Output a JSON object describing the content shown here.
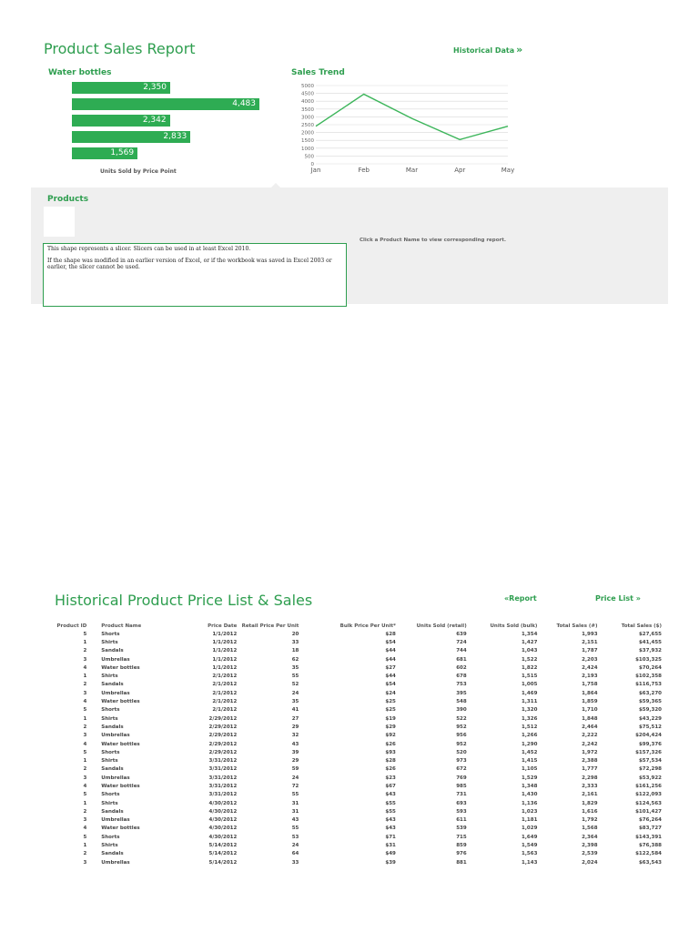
{
  "report": {
    "title": "Product Sales Report",
    "historical_link": "Historical Data",
    "historical_link_icon": "double-chevron-right-icon",
    "bar_chart_title": "Water bottles",
    "trend_title": "Sales Trend",
    "products_title": "Products",
    "click_hint": "Click a Product Name to view corresponding report.",
    "slicer_line1": "This shape represents a slicer. Slicers can be used in at least Excel 2010.",
    "slicer_line2": "If the shape was modified in an earlier version of Excel, or if the workbook was saved in Excel 2003 or earlier, the slicer cannot be used."
  },
  "chart_data": [
    {
      "type": "bar",
      "title": "Water bottles",
      "orientation": "horizontal",
      "values": [
        2350,
        4483,
        2342,
        2833,
        1569
      ],
      "value_labels": [
        "2,350",
        "4,483",
        "2,342",
        "2,833",
        "1,569"
      ],
      "xlabel": "Units Sold by Price Point",
      "color": "#2eac53"
    },
    {
      "type": "line",
      "title": "Sales Trend",
      "categories": [
        "Jan",
        "Feb",
        "Mar",
        "Apr",
        "May"
      ],
      "values": [
        2400,
        4450,
        2900,
        1550,
        2400
      ],
      "ylim": [
        0,
        5000
      ],
      "yticks": [
        "5000",
        "4500",
        "4000",
        "3500",
        "3000",
        "2500",
        "2000",
        "1500",
        "1000",
        "500",
        "0"
      ],
      "grid": true,
      "color": "#3cb55a"
    }
  ],
  "history": {
    "title": "Historical Product Price List & Sales",
    "report_link": "Report",
    "report_link_icon": "double-chevron-left-icon",
    "price_link": "Price List",
    "price_link_icon": "double-chevron-right-icon",
    "columns": [
      "Product ID",
      "Product Name",
      "Price Date",
      "Retail Price Per Unit",
      "Bulk Price Per Unit*",
      "Units Sold (retail)",
      "Units Sold (bulk)",
      "Total Sales (#)",
      "Total Sales ($)"
    ],
    "rows": [
      [
        "5",
        "Shorts",
        "1/1/2012",
        "20",
        "$28",
        "639",
        "1,354",
        "1,993",
        "$27,655"
      ],
      [
        "1",
        "Shirts",
        "1/1/2012",
        "33",
        "$54",
        "724",
        "1,427",
        "2,151",
        "$41,455"
      ],
      [
        "2",
        "Sandals",
        "1/1/2012",
        "18",
        "$44",
        "744",
        "1,043",
        "1,787",
        "$37,932"
      ],
      [
        "3",
        "Umbrellas",
        "1/1/2012",
        "62",
        "$44",
        "681",
        "1,522",
        "2,203",
        "$103,325"
      ],
      [
        "4",
        "Water bottles",
        "1/1/2012",
        "35",
        "$27",
        "602",
        "1,822",
        "2,424",
        "$70,264"
      ],
      [
        "1",
        "Shirts",
        "2/1/2012",
        "55",
        "$44",
        "678",
        "1,515",
        "2,193",
        "$102,358"
      ],
      [
        "2",
        "Sandals",
        "2/1/2012",
        "52",
        "$54",
        "753",
        "1,005",
        "1,758",
        "$116,753"
      ],
      [
        "3",
        "Umbrellas",
        "2/1/2012",
        "24",
        "$24",
        "395",
        "1,469",
        "1,864",
        "$63,270"
      ],
      [
        "4",
        "Water bottles",
        "2/1/2012",
        "35",
        "$25",
        "548",
        "1,311",
        "1,859",
        "$59,365"
      ],
      [
        "5",
        "Shorts",
        "2/1/2012",
        "41",
        "$25",
        "390",
        "1,320",
        "1,710",
        "$59,320"
      ],
      [
        "1",
        "Shirts",
        "2/29/2012",
        "27",
        "$19",
        "522",
        "1,326",
        "1,848",
        "$43,229"
      ],
      [
        "2",
        "Sandals",
        "2/29/2012",
        "29",
        "$29",
        "952",
        "1,512",
        "2,464",
        "$75,512"
      ],
      [
        "3",
        "Umbrellas",
        "2/29/2012",
        "32",
        "$92",
        "956",
        "1,266",
        "2,222",
        "$204,424"
      ],
      [
        "4",
        "Water bottles",
        "2/29/2012",
        "43",
        "$26",
        "952",
        "1,290",
        "2,242",
        "$99,376"
      ],
      [
        "5",
        "Shorts",
        "2/29/2012",
        "39",
        "$93",
        "520",
        "1,452",
        "1,972",
        "$157,326"
      ],
      [
        "1",
        "Shirts",
        "3/31/2012",
        "29",
        "$28",
        "973",
        "1,415",
        "2,388",
        "$57,534"
      ],
      [
        "2",
        "Sandals",
        "3/31/2012",
        "59",
        "$26",
        "672",
        "1,105",
        "1,777",
        "$72,298"
      ],
      [
        "3",
        "Umbrellas",
        "3/31/2012",
        "24",
        "$23",
        "769",
        "1,529",
        "2,298",
        "$53,922"
      ],
      [
        "4",
        "Water bottles",
        "3/31/2012",
        "72",
        "$67",
        "985",
        "1,348",
        "2,333",
        "$161,256"
      ],
      [
        "5",
        "Shorts",
        "3/31/2012",
        "55",
        "$43",
        "731",
        "1,430",
        "2,161",
        "$122,093"
      ],
      [
        "1",
        "Shirts",
        "4/30/2012",
        "31",
        "$55",
        "693",
        "1,136",
        "1,829",
        "$124,563"
      ],
      [
        "2",
        "Sandals",
        "4/30/2012",
        "31",
        "$55",
        "593",
        "1,023",
        "1,616",
        "$101,427"
      ],
      [
        "3",
        "Umbrellas",
        "4/30/2012",
        "43",
        "$43",
        "611",
        "1,181",
        "1,792",
        "$76,264"
      ],
      [
        "4",
        "Water bottles",
        "4/30/2012",
        "55",
        "$43",
        "539",
        "1,029",
        "1,568",
        "$83,727"
      ],
      [
        "5",
        "Shorts",
        "4/30/2012",
        "53",
        "$71",
        "715",
        "1,649",
        "2,364",
        "$143,391"
      ],
      [
        "1",
        "Shirts",
        "5/14/2012",
        "24",
        "$31",
        "859",
        "1,549",
        "2,398",
        "$76,388"
      ],
      [
        "2",
        "Sandals",
        "5/14/2012",
        "64",
        "$49",
        "976",
        "1,563",
        "2,539",
        "$122,584"
      ],
      [
        "3",
        "Umbrellas",
        "5/14/2012",
        "33",
        "$39",
        "881",
        "1,143",
        "2,024",
        "$63,543"
      ]
    ]
  }
}
